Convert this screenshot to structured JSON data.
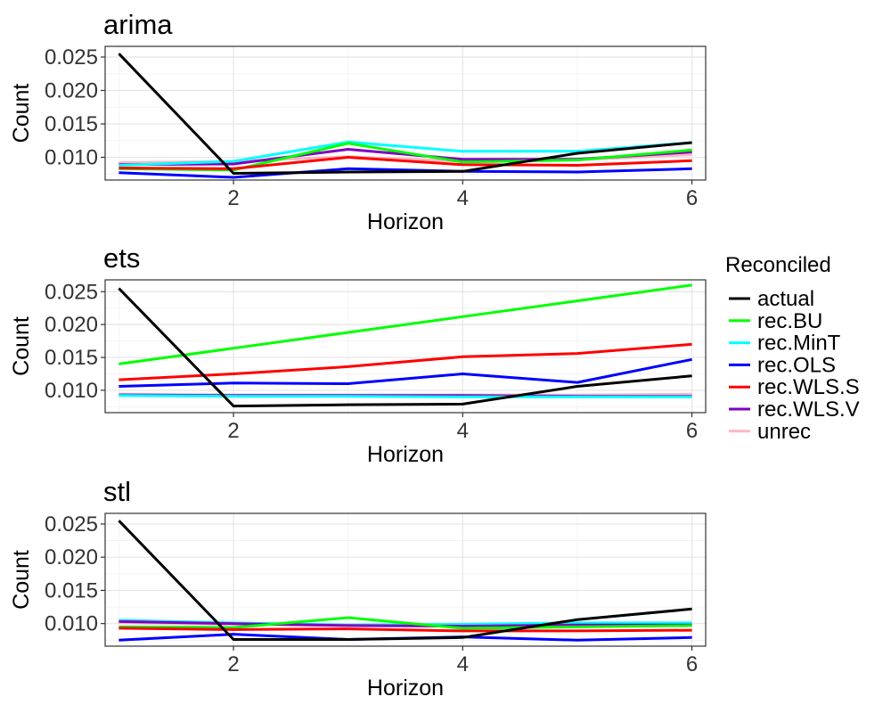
{
  "chart_data": [
    {
      "type": "line",
      "title": "arima",
      "xlabel": "Horizon",
      "ylabel": "Count",
      "x": [
        1,
        2,
        3,
        4,
        5,
        6
      ],
      "xticks": [
        "2",
        "4",
        "6"
      ],
      "yticks": [
        "0.010",
        "0.015",
        "0.020",
        "0.025"
      ],
      "xlim": [
        0.88,
        6.12
      ],
      "ylim": [
        0.0066,
        0.0266
      ],
      "grid": true,
      "series": [
        {
          "name": "unrec",
          "values": [
            0.0092,
            0.0094,
            0.0101,
            0.0094,
            0.0096,
            0.0104
          ]
        },
        {
          "name": "rec.WLS.V",
          "values": [
            0.0089,
            0.009,
            0.0112,
            0.0097,
            0.0097,
            0.0108
          ]
        },
        {
          "name": "rec.MinT",
          "values": [
            0.0088,
            0.0094,
            0.0123,
            0.0109,
            0.0109,
            0.0122
          ]
        },
        {
          "name": "rec.BU",
          "values": [
            0.0083,
            0.0081,
            0.0121,
            0.0093,
            0.0096,
            0.0111
          ]
        },
        {
          "name": "rec.WLS.S",
          "values": [
            0.0084,
            0.0083,
            0.01,
            0.0089,
            0.0088,
            0.0095
          ]
        },
        {
          "name": "rec.OLS",
          "values": [
            0.0077,
            0.007,
            0.0083,
            0.0079,
            0.0078,
            0.0083
          ]
        },
        {
          "name": "actual",
          "values": [
            0.0255,
            0.0076,
            0.0078,
            0.0079,
            0.0106,
            0.0122
          ]
        }
      ]
    },
    {
      "type": "line",
      "title": "ets",
      "xlabel": "Horizon",
      "ylabel": "Count",
      "x": [
        1,
        2,
        3,
        4,
        5,
        6
      ],
      "xticks": [
        "2",
        "4",
        "6"
      ],
      "yticks": [
        "0.010",
        "0.015",
        "0.020",
        "0.025"
      ],
      "xlim": [
        0.88,
        6.12
      ],
      "ylim": [
        0.0066,
        0.0268
      ],
      "grid": true,
      "series": [
        {
          "name": "unrec",
          "values": [
            0.0094,
            0.0093,
            0.0093,
            0.0093,
            0.0093,
            0.0094
          ]
        },
        {
          "name": "rec.WLS.V",
          "values": [
            0.0093,
            0.0092,
            0.0092,
            0.0092,
            0.0091,
            0.0091
          ]
        },
        {
          "name": "rec.MinT",
          "values": [
            0.0092,
            0.0091,
            0.0091,
            0.009,
            0.009,
            0.009
          ]
        },
        {
          "name": "rec.BU",
          "values": [
            0.014,
            0.0164,
            0.0188,
            0.0212,
            0.0236,
            0.026
          ]
        },
        {
          "name": "rec.WLS.S",
          "values": [
            0.0116,
            0.0125,
            0.0136,
            0.0151,
            0.0156,
            0.017
          ]
        },
        {
          "name": "rec.OLS",
          "values": [
            0.0106,
            0.0111,
            0.011,
            0.0125,
            0.0112,
            0.0147
          ]
        },
        {
          "name": "actual",
          "values": [
            0.0255,
            0.0076,
            0.0078,
            0.0079,
            0.0106,
            0.0122
          ]
        }
      ]
    },
    {
      "type": "line",
      "title": "stl",
      "xlabel": "Horizon",
      "ylabel": "Count",
      "x": [
        1,
        2,
        3,
        4,
        5,
        6
      ],
      "xticks": [
        "2",
        "4",
        "6"
      ],
      "yticks": [
        "0.010",
        "0.015",
        "0.020",
        "0.025"
      ],
      "xlim": [
        0.88,
        6.12
      ],
      "ylim": [
        0.0066,
        0.0266
      ],
      "grid": true,
      "series": [
        {
          "name": "unrec",
          "values": [
            0.0101,
            0.0099,
            0.0097,
            0.0097,
            0.0099,
            0.0101
          ]
        },
        {
          "name": "rec.MinT",
          "values": [
            0.0105,
            0.0101,
            0.0098,
            0.0099,
            0.0101,
            0.0101
          ]
        },
        {
          "name": "rec.WLS.V",
          "values": [
            0.0103,
            0.01,
            0.0097,
            0.0096,
            0.0098,
            0.0098
          ]
        },
        {
          "name": "rec.BU",
          "values": [
            0.0095,
            0.0094,
            0.0109,
            0.0093,
            0.0095,
            0.0097
          ]
        },
        {
          "name": "rec.WLS.S",
          "values": [
            0.0093,
            0.0091,
            0.0092,
            0.0089,
            0.0089,
            0.009
          ]
        },
        {
          "name": "rec.OLS",
          "values": [
            0.0075,
            0.0084,
            0.0076,
            0.008,
            0.0075,
            0.0079
          ]
        },
        {
          "name": "actual",
          "values": [
            0.0255,
            0.0076,
            0.0076,
            0.0079,
            0.0106,
            0.0122
          ]
        }
      ]
    }
  ],
  "legend": {
    "title": "Reconciled",
    "placement": "right",
    "items": [
      {
        "label": "actual",
        "color": "#000000"
      },
      {
        "label": "rec.BU",
        "color": "#00FF00"
      },
      {
        "label": "rec.MinT",
        "color": "#00FFFF"
      },
      {
        "label": "rec.OLS",
        "color": "#0000FF"
      },
      {
        "label": "rec.WLS.S",
        "color": "#FF0000"
      },
      {
        "label": "rec.WLS.V",
        "color": "#8000C0"
      },
      {
        "label": "unrec",
        "color": "#FFB6C1"
      }
    ]
  },
  "colors": {
    "actual": "#000000",
    "rec.BU": "#00FF00",
    "rec.MinT": "#00FFFF",
    "rec.OLS": "#0000FF",
    "rec.WLS.S": "#FF0000",
    "rec.WLS.V": "#8000C0",
    "unrec": "#FFB6C1"
  }
}
